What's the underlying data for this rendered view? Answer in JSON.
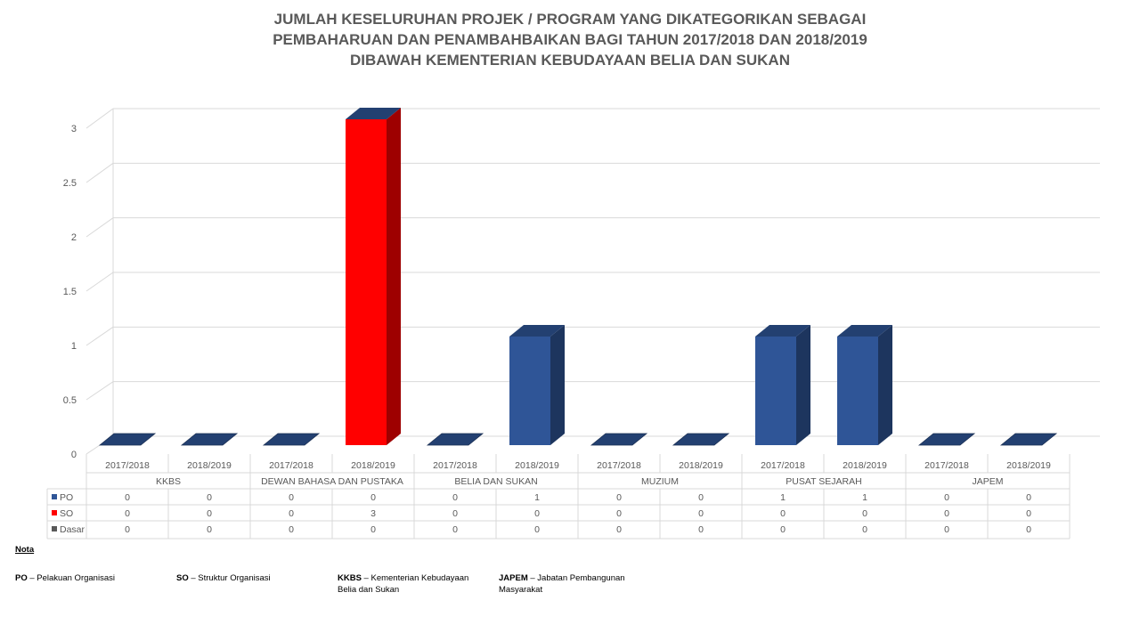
{
  "chart_data": {
    "type": "bar",
    "title_lines": [
      "JUMLAH KESELURUHAN PROJEK / PROGRAM YANG DIKATEGORIKAN SEBAGAI",
      "PEMBAHARUAN DAN PENAMBAHBAIKAN BAGI TAHUN 2017/2018 DAN 2018/2019",
      "DIBAWAH KEMENTERIAN KEBUDAYAAN BELIA DAN SUKAN"
    ],
    "groups": [
      "KKBS",
      "DEWAN BAHASA DAN PUSTAKA",
      "BELIA DAN SUKAN",
      "MUZIUM",
      "PUSAT SEJARAH",
      "JAPEM"
    ],
    "categories": [
      "2017/2018",
      "2018/2019",
      "2017/2018",
      "2018/2019",
      "2017/2018",
      "2018/2019",
      "2017/2018",
      "2018/2019",
      "2017/2018",
      "2018/2019",
      "2017/2018",
      "2018/2019"
    ],
    "series": [
      {
        "name": "PO",
        "color": "#2F5597",
        "values": [
          0,
          0,
          0,
          0,
          0,
          1,
          0,
          0,
          1,
          1,
          0,
          0
        ]
      },
      {
        "name": "SO",
        "color": "#FF0000",
        "values": [
          0,
          0,
          0,
          3,
          0,
          0,
          0,
          0,
          0,
          0,
          0,
          0
        ]
      },
      {
        "name": "Dasar",
        "color": "#595959",
        "values": [
          0,
          0,
          0,
          0,
          0,
          0,
          0,
          0,
          0,
          0,
          0,
          0
        ]
      }
    ],
    "yticks": [
      "0",
      "0.5",
      "1",
      "1.5",
      "2",
      "2.5",
      "3"
    ],
    "ylim": [
      0,
      3
    ],
    "grid": true,
    "legend": "data-table"
  },
  "notes": {
    "heading": "Nota",
    "items": [
      {
        "abbr": "PO",
        "text": " – Pelakuan Organisasi"
      },
      {
        "abbr": "SO",
        "text": " – Struktur Organisasi"
      },
      {
        "abbr": "KKBS",
        "text": " – Kementerian Kebudayaan",
        "text2": "Belia dan Sukan"
      },
      {
        "abbr": "JAPEM",
        "text": " – Jabatan Pembangunan",
        "text2": "Masyarakat"
      }
    ]
  }
}
